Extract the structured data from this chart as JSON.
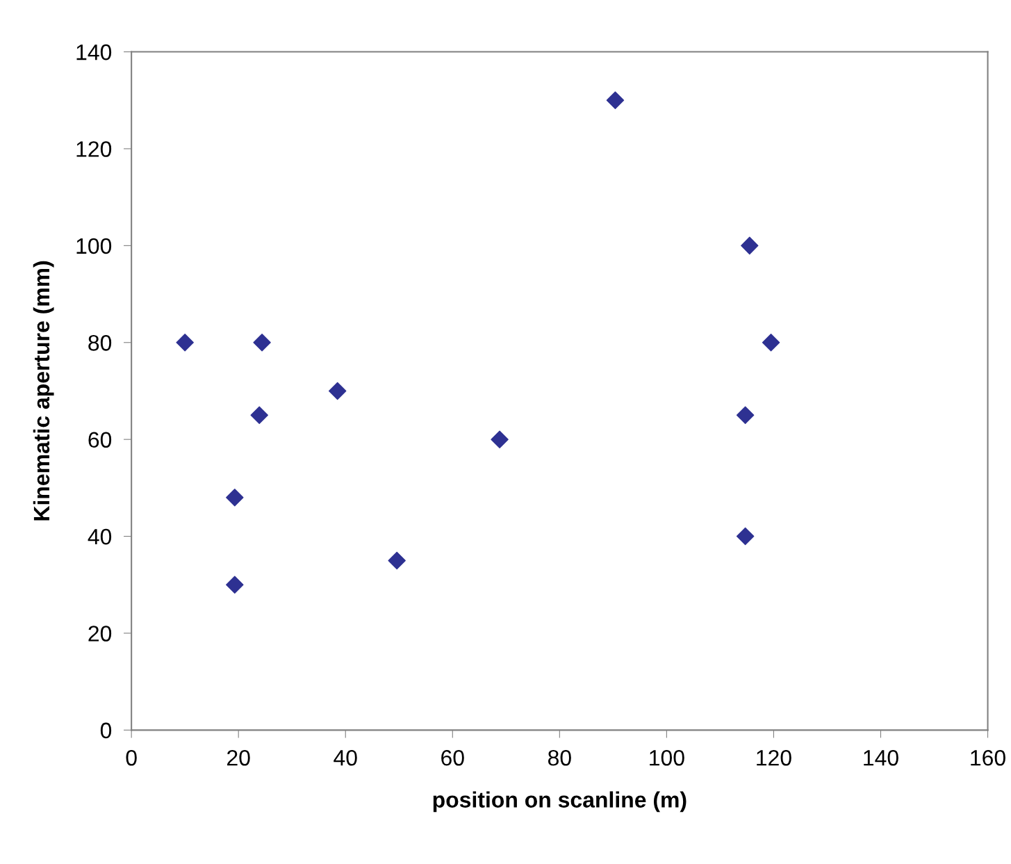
{
  "chart_data": {
    "type": "scatter",
    "xlabel": "position on scanline (m)",
    "ylabel": "Kinematic aperture (mm)",
    "x": [
      10,
      24.4,
      23.9,
      38.5,
      19.3,
      19.3,
      49.6,
      68.8,
      90.4,
      115.5,
      119.5,
      114.7,
      114.7
    ],
    "series": [
      {
        "color": "#2e3192",
        "values": [
          80,
          80,
          65,
          70,
          48,
          30,
          35,
          60,
          130,
          100,
          80,
          65,
          40
        ]
      }
    ],
    "marker": "diamond",
    "grid": false,
    "xlim": [
      0,
      160
    ],
    "xticks": [
      0,
      20,
      40,
      60,
      80,
      100,
      120,
      140,
      160
    ],
    "ylim": [
      0,
      140
    ],
    "yticks": [
      0,
      20,
      40,
      60,
      80,
      100,
      120,
      140
    ]
  }
}
